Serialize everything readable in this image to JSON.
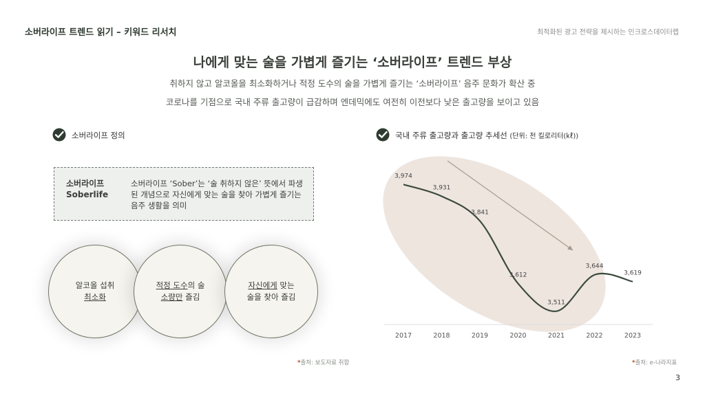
{
  "header": {
    "title": "소버라이프 트렌드 읽기 – 키워드 리서치",
    "company": "최적화된 광고 전략을 제시하는 인크로스데이터랩"
  },
  "main_title": "나에게 맞는 술을 가볍게 즐기는 ‘소버라이프’ 트렌드 부상",
  "subtitle_lines": [
    "취하지 않고 알코올을 최소화하거나 적정 도수의 술을 가볍게 즐기는 ‘소버라이프’ 음주 문화가 확산 중",
    "코로나를 기점으로 국내 주류 출고량이 급감하며 엔데믹에도 여전히 이전보다 낮은 출고량을 보이고 있음"
  ],
  "left_section": {
    "label": "소버라이프 정의",
    "term_ko": "소버라이프",
    "term_en": "Soberlife",
    "definition": "소버라이프 ‘Sober’는 ‘술 취하지 않은’ 뜻에서 파생된 개념으로 자신에게 맞는 술을 찾아 가볍게 즐기는 음주 생활을 의미",
    "circles": [
      {
        "line1": "알코올 섭취",
        "line2_u": "최소화",
        "line2_rest": "",
        "line1_u": ""
      },
      {
        "line1_u": "적정 도수",
        "line1": "의 술",
        "line2_u": "소량만",
        "line2_rest": " 즐김"
      },
      {
        "line1_u": "자신에게",
        "line1": " 맞는",
        "line2_u": "",
        "line2_rest": "술을 찾아 즐김"
      }
    ],
    "source": "출처: 보도자료 취합"
  },
  "right_section": {
    "label": "국내 주류 출고량과 출고량 추세선",
    "unit": "(단위: 천 킬로리터(㎘))",
    "source": "출처: e-나라지표"
  },
  "chart_data": {
    "type": "line",
    "title": "국내 주류 출고량과 출고량 추세선",
    "unit": "(단위: 천 킬로리터(㎘))",
    "x": [
      "2017",
      "2018",
      "2019",
      "2020",
      "2021",
      "2022",
      "2023"
    ],
    "values": [
      3974,
      3931,
      3841,
      3612,
      3511,
      3644,
      3619
    ],
    "data_labels": [
      "3,974",
      "3,931",
      "3,841",
      "3,612",
      "3,511",
      "3,644",
      "3,619"
    ],
    "ylim": [
      3480,
      4000
    ],
    "grid": false,
    "trend_arrow": "decreasing",
    "colors": {
      "line": "#3c4a3e",
      "ellipse": "#eee5df",
      "arrow": "#a89a8c"
    }
  },
  "page_number": "3"
}
